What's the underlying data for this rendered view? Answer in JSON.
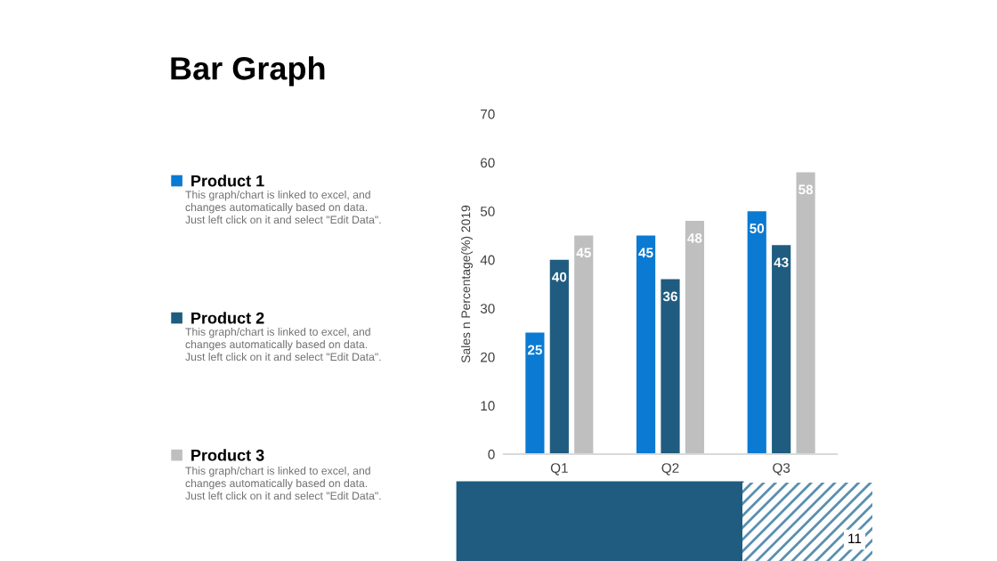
{
  "chart_data": {
    "type": "bar",
    "title": "Bar Graph",
    "ylabel": "Sales n Percentage(%) 2019",
    "categories": [
      "Q1",
      "Q2",
      "Q3"
    ],
    "series": [
      {
        "name": "Product 1",
        "color": "#0a7ad2",
        "values": [
          25,
          45,
          50
        ]
      },
      {
        "name": "Product 2",
        "color": "#1f5c80",
        "values": [
          40,
          36,
          43
        ]
      },
      {
        "name": "Product 3",
        "color": "#bfbfbf",
        "values": [
          45,
          48,
          58
        ]
      }
    ],
    "ylim": [
      0,
      70
    ],
    "yticks": [
      0,
      10,
      20,
      30,
      40,
      50,
      60,
      70
    ],
    "grid": false,
    "legend": "left",
    "data_labels": true,
    "annotations": [
      "This graph/chart is linked to excel, and\nchanges automatically based on data.\nJust left click on it and select \"Edit Data\".",
      "This graph/chart is linked to excel, and\nchanges automatically based on data.\nJust left click on it and select \"Edit Data\".",
      "This graph/chart is linked to excel, and\nchanges automatically based on data.\nJust left click on it and select \"Edit Data\".",
      "11"
    ]
  }
}
